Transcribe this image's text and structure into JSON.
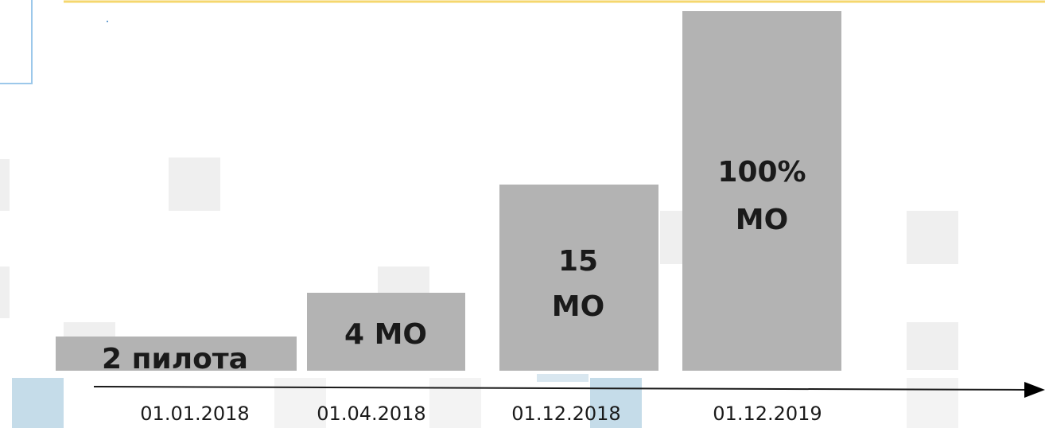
{
  "steps": [
    {
      "date": "01.01.2018",
      "label": [
        "2 пилота"
      ]
    },
    {
      "date": "01.04.2018",
      "label": [
        "4 МО"
      ]
    },
    {
      "date": "01.12.2018",
      "label": [
        "15",
        "МО"
      ]
    },
    {
      "date": "01.12.2019",
      "label": [
        "100%",
        "МО"
      ]
    }
  ]
}
